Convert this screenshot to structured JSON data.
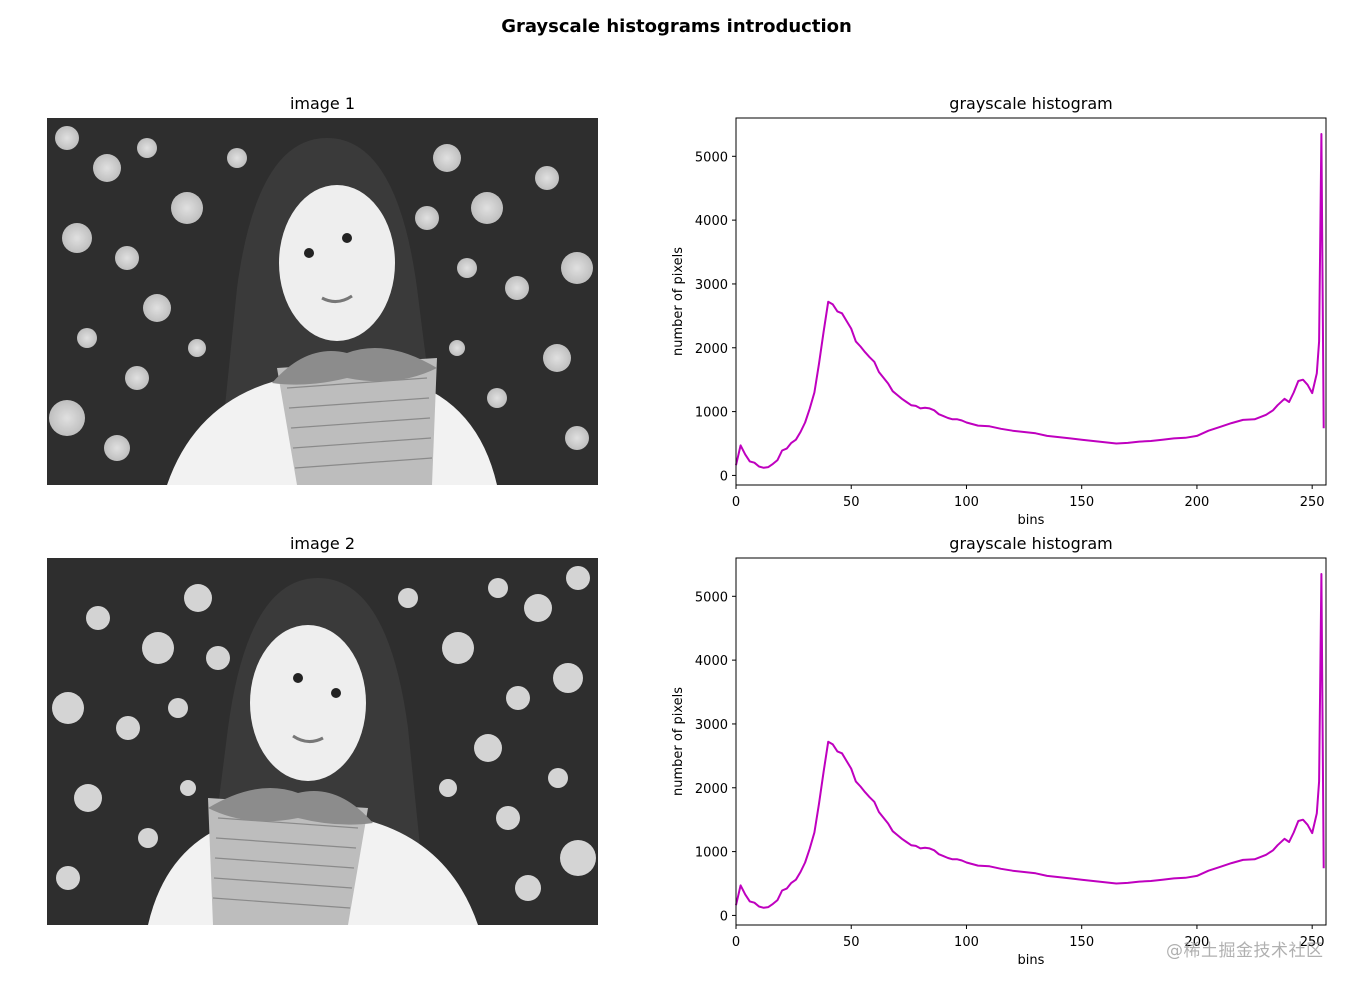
{
  "figure": {
    "suptitle": "Grayscale histograms introduction",
    "watermark": "@稀土掘金技术社区"
  },
  "images": [
    {
      "title": "image 1",
      "description": "grayscale photo of a woman with long hair holding a bouquet, bokeh foliage background"
    },
    {
      "title": "image 2",
      "description": "horizontally mirrored copy of image 1"
    }
  ],
  "chart_data": [
    {
      "type": "line",
      "title": "grayscale histogram",
      "xlabel": "bins",
      "ylabel": "number of pixels",
      "xlim": [
        0,
        256
      ],
      "ylim": [
        -150,
        5600
      ],
      "xticks": [
        0,
        50,
        100,
        150,
        200,
        250
      ],
      "yticks": [
        0,
        1000,
        2000,
        3000,
        4000,
        5000
      ],
      "grid": false,
      "color": "#bf00bf",
      "values_note": "Approximate values read visually from the rendered curve at ~2-5 bin spacing; not exact per-bin histogram counts.",
      "x": [
        0,
        2,
        4,
        6,
        8,
        10,
        12,
        14,
        16,
        18,
        20,
        22,
        24,
        26,
        28,
        30,
        32,
        34,
        36,
        38,
        40,
        42,
        44,
        46,
        48,
        50,
        52,
        54,
        56,
        58,
        60,
        62,
        64,
        66,
        68,
        70,
        72,
        74,
        76,
        78,
        80,
        82,
        84,
        86,
        88,
        90,
        92,
        94,
        96,
        98,
        100,
        105,
        110,
        115,
        120,
        125,
        130,
        135,
        140,
        145,
        150,
        155,
        160,
        165,
        170,
        175,
        180,
        185,
        190,
        195,
        200,
        205,
        210,
        215,
        220,
        225,
        230,
        233,
        235,
        238,
        240,
        242,
        244,
        246,
        248,
        250,
        252,
        253,
        254,
        255
      ],
      "values": [
        160,
        470,
        330,
        220,
        200,
        140,
        120,
        130,
        180,
        240,
        390,
        420,
        510,
        560,
        680,
        830,
        1050,
        1300,
        1750,
        2250,
        2720,
        2680,
        2570,
        2540,
        2420,
        2300,
        2100,
        2020,
        1930,
        1850,
        1780,
        1620,
        1530,
        1440,
        1320,
        1260,
        1200,
        1150,
        1100,
        1090,
        1050,
        1060,
        1050,
        1020,
        960,
        930,
        900,
        880,
        880,
        860,
        830,
        780,
        770,
        730,
        700,
        680,
        660,
        620,
        600,
        580,
        560,
        540,
        520,
        500,
        510,
        530,
        540,
        560,
        580,
        590,
        620,
        700,
        760,
        820,
        870,
        880,
        950,
        1020,
        1100,
        1200,
        1150,
        1300,
        1480,
        1500,
        1420,
        1290,
        1600,
        2100,
        5350,
        740
      ]
    },
    {
      "type": "line",
      "title": "grayscale histogram",
      "xlabel": "bins",
      "ylabel": "number of pixels",
      "xlim": [
        0,
        256
      ],
      "ylim": [
        -150,
        5600
      ],
      "xticks": [
        0,
        50,
        100,
        150,
        200,
        250
      ],
      "yticks": [
        0,
        1000,
        2000,
        3000,
        4000,
        5000
      ],
      "grid": false,
      "color": "#bf00bf",
      "values_note": "Visually identical to the first histogram (image 2 is a mirror of image 1); same approximate readings.",
      "x": [
        0,
        2,
        4,
        6,
        8,
        10,
        12,
        14,
        16,
        18,
        20,
        22,
        24,
        26,
        28,
        30,
        32,
        34,
        36,
        38,
        40,
        42,
        44,
        46,
        48,
        50,
        52,
        54,
        56,
        58,
        60,
        62,
        64,
        66,
        68,
        70,
        72,
        74,
        76,
        78,
        80,
        82,
        84,
        86,
        88,
        90,
        92,
        94,
        96,
        98,
        100,
        105,
        110,
        115,
        120,
        125,
        130,
        135,
        140,
        145,
        150,
        155,
        160,
        165,
        170,
        175,
        180,
        185,
        190,
        195,
        200,
        205,
        210,
        215,
        220,
        225,
        230,
        233,
        235,
        238,
        240,
        242,
        244,
        246,
        248,
        250,
        252,
        253,
        254,
        255
      ],
      "values": [
        160,
        470,
        330,
        220,
        200,
        140,
        120,
        130,
        180,
        240,
        390,
        420,
        510,
        560,
        680,
        830,
        1050,
        1300,
        1750,
        2250,
        2720,
        2680,
        2570,
        2540,
        2420,
        2300,
        2100,
        2020,
        1930,
        1850,
        1780,
        1620,
        1530,
        1440,
        1320,
        1260,
        1200,
        1150,
        1100,
        1090,
        1050,
        1060,
        1050,
        1020,
        960,
        930,
        900,
        880,
        880,
        860,
        830,
        780,
        770,
        730,
        700,
        680,
        660,
        620,
        600,
        580,
        560,
        540,
        520,
        500,
        510,
        530,
        540,
        560,
        580,
        590,
        620,
        700,
        760,
        820,
        870,
        880,
        950,
        1020,
        1100,
        1200,
        1150,
        1300,
        1480,
        1500,
        1420,
        1290,
        1600,
        2100,
        5350,
        740
      ]
    }
  ]
}
